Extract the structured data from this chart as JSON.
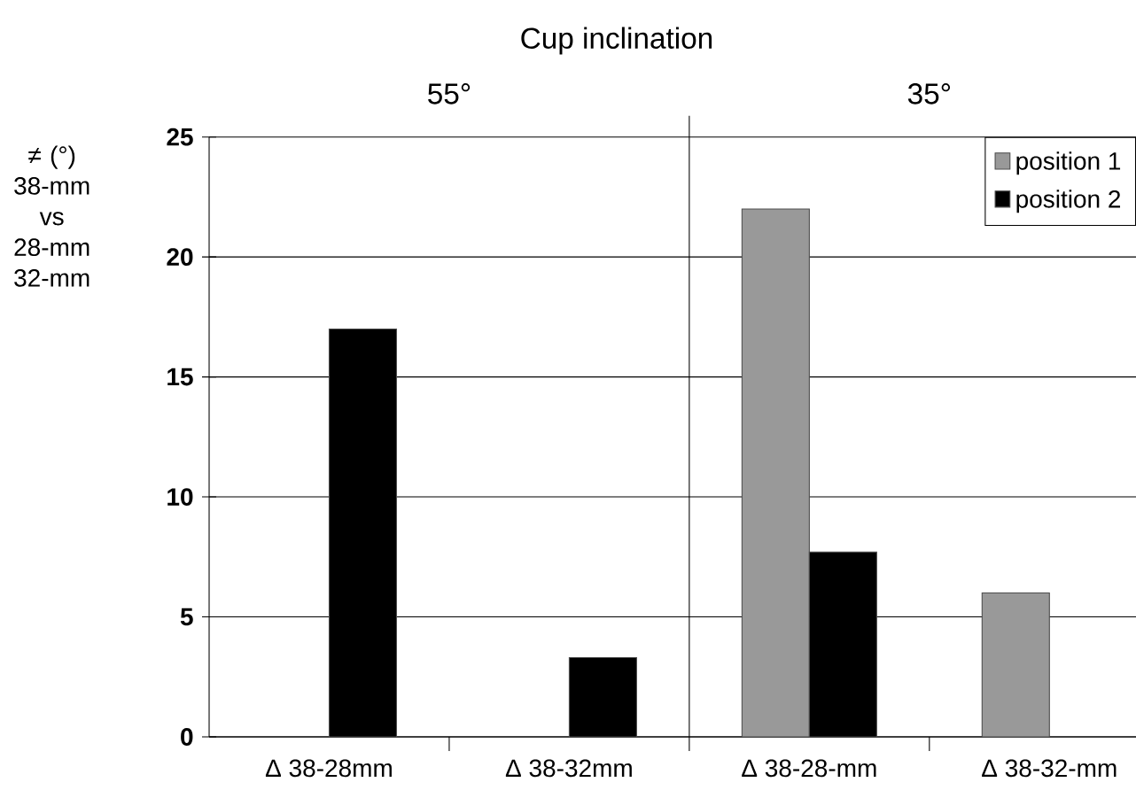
{
  "chart_data": {
    "type": "bar",
    "title": "Cup inclination",
    "ylabel": "≠ (°) 38-mm vs 28-mm 32-mm",
    "annotations": [
      "55°",
      "35°"
    ],
    "categories": [
      "Δ 38-28mm",
      "Δ 38-32mm",
      "Δ 38-28-mm",
      "Δ 38-32-mm"
    ],
    "series": [
      {
        "name": "position 1",
        "color": "#999999",
        "values": [
          null,
          null,
          22,
          6
        ]
      },
      {
        "name": "position 2",
        "color": "#000000",
        "values": [
          17,
          3.3,
          7.7,
          null
        ]
      }
    ],
    "ylim": [
      0,
      25
    ],
    "yticks": [
      0,
      5,
      10,
      15,
      20,
      25
    ],
    "grid": "y",
    "legend": "top right"
  }
}
